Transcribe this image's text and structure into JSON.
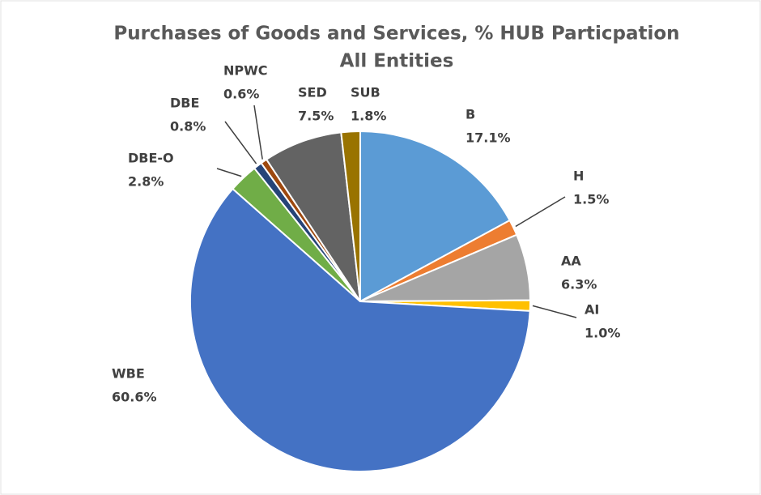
{
  "chart_data": {
    "type": "pie",
    "title": "Purchases of Goods and Services, % HUB Particpation",
    "subtitle": "All Entities",
    "categories": [
      "B",
      "H",
      "AA",
      "AI",
      "WBE",
      "DBE-O",
      "DBE",
      "NPWC",
      "SED",
      "SUB"
    ],
    "values": [
      17.1,
      1.5,
      6.3,
      1.0,
      60.6,
      2.8,
      0.8,
      0.6,
      7.5,
      1.8
    ],
    "value_labels": [
      "17.1%",
      "1.5%",
      "6.3%",
      "1.0%",
      "60.6%",
      "2.8%",
      "0.8%",
      "0.6%",
      "7.5%",
      "1.8%"
    ],
    "colors": [
      "#5b9bd5",
      "#ed7d31",
      "#a5a5a5",
      "#ffc000",
      "#4472c4",
      "#70ad47",
      "#264478",
      "#9e480e",
      "#636363",
      "#997300"
    ]
  }
}
